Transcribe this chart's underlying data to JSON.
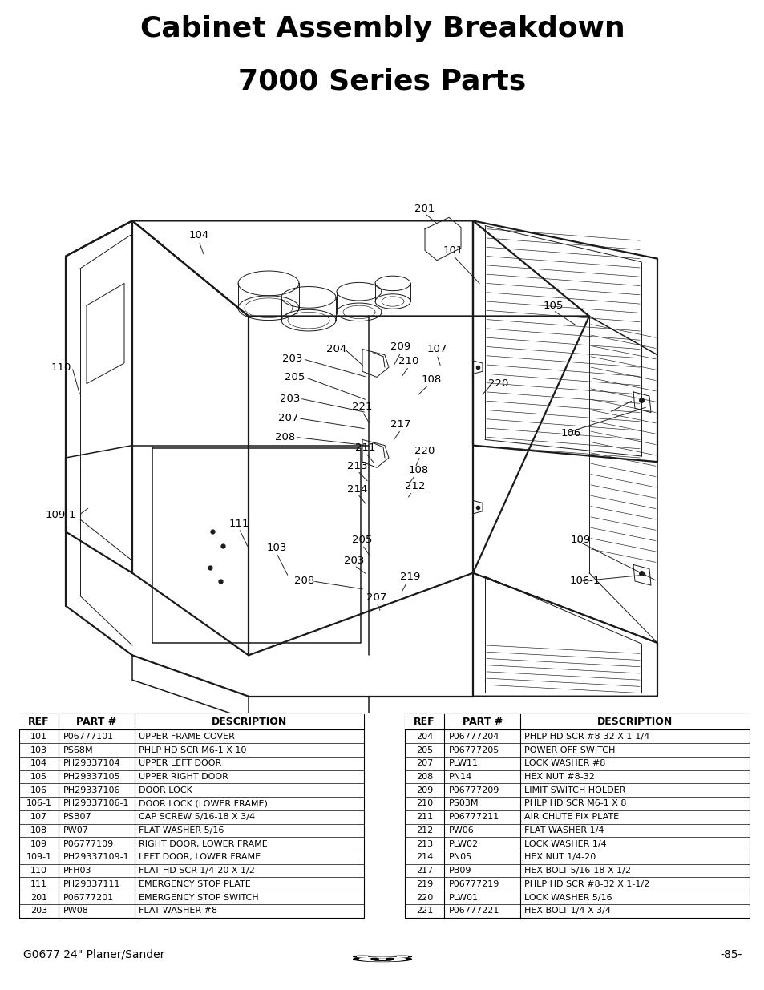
{
  "title_line1": "Cabinet Assembly Breakdown",
  "title_line2": "7000 Series Parts",
  "background_color": "#ffffff",
  "title_fontsize": 26,
  "title_fontweight": "bold",
  "footer_left": "G0677 24\" Planer/Sander",
  "footer_right": "-85-",
  "table_left_rows": [
    [
      "101",
      "P06777101",
      "UPPER FRAME COVER"
    ],
    [
      "103",
      "PS68M",
      "PHLP HD SCR M6-1 X 10"
    ],
    [
      "104",
      "PH29337104",
      "UPPER LEFT DOOR"
    ],
    [
      "105",
      "PH29337105",
      "UPPER RIGHT DOOR"
    ],
    [
      "106",
      "PH29337106",
      "DOOR LOCK"
    ],
    [
      "106-1",
      "PH29337106-1",
      "DOOR LOCK (LOWER FRAME)"
    ],
    [
      "107",
      "PSB07",
      "CAP SCREW 5/16-18 X 3/4"
    ],
    [
      "108",
      "PW07",
      "FLAT WASHER 5/16"
    ],
    [
      "109",
      "P06777109",
      "RIGHT DOOR, LOWER FRAME"
    ],
    [
      "109-1",
      "PH29337109-1",
      "LEFT DOOR, LOWER FRAME"
    ],
    [
      "110",
      "PFH03",
      "FLAT HD SCR 1/4-20 X 1/2"
    ],
    [
      "111",
      "PH29337111",
      "EMERGENCY STOP PLATE"
    ],
    [
      "201",
      "P06777201",
      "EMERGENCY STOP SWITCH"
    ],
    [
      "203",
      "PW08",
      "FLAT WASHER #8"
    ]
  ],
  "table_right_rows": [
    [
      "204",
      "P06777204",
      "PHLP HD SCR #8-32 X 1-1/4"
    ],
    [
      "205",
      "P06777205",
      "POWER OFF SWITCH"
    ],
    [
      "207",
      "PLW11",
      "LOCK WASHER #8"
    ],
    [
      "208",
      "PN14",
      "HEX NUT #8-32"
    ],
    [
      "209",
      "P06777209",
      "LIMIT SWITCH HOLDER"
    ],
    [
      "210",
      "PS03M",
      "PHLP HD SCR M6-1 X 8"
    ],
    [
      "211",
      "P06777211",
      "AIR CHUTE FIX PLATE"
    ],
    [
      "212",
      "PW06",
      "FLAT WASHER 1/4"
    ],
    [
      "213",
      "PLW02",
      "LOCK WASHER 1/4"
    ],
    [
      "214",
      "PN05",
      "HEX NUT 1/4-20"
    ],
    [
      "217",
      "PB09",
      "HEX BOLT 5/16-18 X 1/2"
    ],
    [
      "219",
      "P06777219",
      "PHLP HD SCR #8-32 X 1-1/2"
    ],
    [
      "220",
      "PLW01",
      "LOCK WASHER 5/16"
    ],
    [
      "221",
      "P06777221",
      "HEX BOLT 1/4 X 3/4"
    ]
  ]
}
